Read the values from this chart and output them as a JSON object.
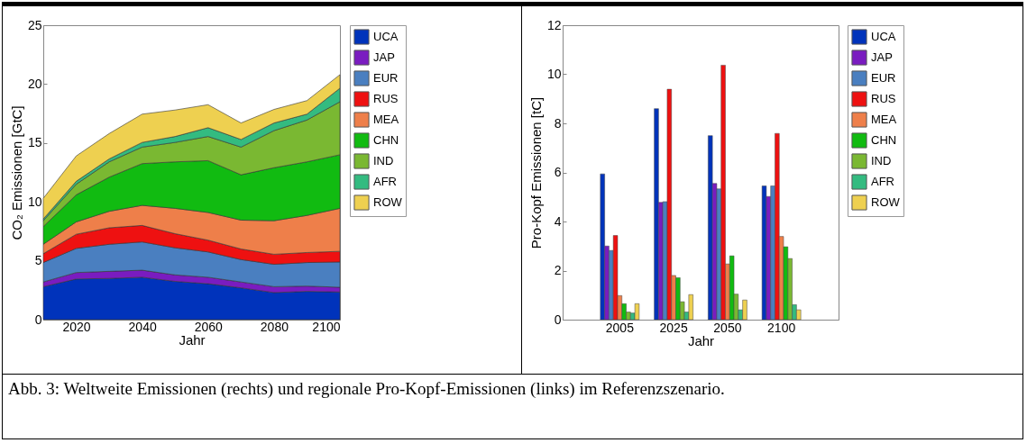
{
  "chart_data": [
    {
      "type": "area",
      "stacked": true,
      "xlabel": "Jahr",
      "ylabel": "CO₂ Emissionen [GtC]",
      "x": [
        2010,
        2020,
        2030,
        2040,
        2050,
        2060,
        2070,
        2080,
        2090,
        2100
      ],
      "xlim": [
        2010,
        2100
      ],
      "xticks": [
        2020,
        2040,
        2060,
        2080,
        2100
      ],
      "ylim": [
        0,
        25
      ],
      "yticks": [
        0,
        5,
        10,
        15,
        20,
        25
      ],
      "grid": false,
      "legend": "top right",
      "annotations": [
        "Abb. 3: Weltweite Emissionen (rechts) und regionale Pro-Kopf-Emissionen (links) im Referenzszenario."
      ],
      "series": [
        {
          "name": "UCA",
          "color": "#0033bb",
          "values": [
            2.8,
            3.45,
            3.5,
            3.6,
            3.25,
            3.05,
            2.7,
            2.3,
            2.4,
            2.35
          ]
        },
        {
          "name": "JAP",
          "color": "#7a1cc0",
          "values": [
            0.4,
            0.55,
            0.6,
            0.6,
            0.55,
            0.55,
            0.5,
            0.5,
            0.45,
            0.4
          ]
        },
        {
          "name": "EUR",
          "color": "#4a7fc0",
          "values": [
            1.65,
            2.05,
            2.3,
            2.4,
            2.3,
            2.15,
            1.9,
            1.9,
            2.0,
            2.15
          ]
        },
        {
          "name": "RUS",
          "color": "#ee1111",
          "values": [
            0.75,
            1.2,
            1.4,
            1.4,
            1.2,
            1.0,
            0.9,
            0.85,
            0.85,
            0.9
          ]
        },
        {
          "name": "MEA",
          "color": "#ee7f4a",
          "values": [
            0.8,
            1.05,
            1.4,
            1.7,
            2.15,
            2.35,
            2.45,
            2.85,
            3.15,
            3.65
          ]
        },
        {
          "name": "CHN",
          "color": "#11bb11",
          "values": [
            1.5,
            2.3,
            2.9,
            3.55,
            3.95,
            4.4,
            3.85,
            4.5,
            4.55,
            4.55
          ]
        },
        {
          "name": "IND",
          "color": "#7ab832",
          "values": [
            0.5,
            0.9,
            1.3,
            1.4,
            1.65,
            2.05,
            2.35,
            3.15,
            3.55,
            4.5
          ]
        },
        {
          "name": "AFR",
          "color": "#33bb80",
          "values": [
            0.15,
            0.25,
            0.25,
            0.4,
            0.5,
            0.75,
            0.65,
            0.65,
            0.5,
            1.15
          ]
        },
        {
          "name": "ROW",
          "color": "#eed050",
          "values": [
            1.75,
            2.15,
            2.15,
            2.4,
            2.25,
            1.95,
            1.4,
            1.15,
            1.15,
            1.15
          ]
        }
      ]
    },
    {
      "type": "bar",
      "xlabel": "Jahr",
      "ylabel": "Pro-Kopf Emissionen [tC]",
      "categories": [
        "2005",
        "2025",
        "2050",
        "2100"
      ],
      "ylim": [
        0,
        12
      ],
      "yticks": [
        0,
        2,
        4,
        6,
        8,
        10,
        12
      ],
      "grid": false,
      "legend": "top right",
      "series": [
        {
          "name": "UCA",
          "color": "#0033bb",
          "values": [
            5.94,
            8.6,
            7.5,
            5.45
          ]
        },
        {
          "name": "JAP",
          "color": "#7a1cc0",
          "values": [
            3.0,
            4.78,
            5.55,
            5.02
          ]
        },
        {
          "name": "EUR",
          "color": "#4a7fc0",
          "values": [
            2.82,
            4.81,
            5.33,
            5.45
          ]
        },
        {
          "name": "RUS",
          "color": "#ee1111",
          "values": [
            3.43,
            9.39,
            10.37,
            7.59
          ]
        },
        {
          "name": "MEA",
          "color": "#ee7f4a",
          "values": [
            0.98,
            1.8,
            2.27,
            3.39
          ]
        },
        {
          "name": "CHN",
          "color": "#11bb11",
          "values": [
            0.65,
            1.71,
            2.6,
            2.97
          ]
        },
        {
          "name": "IND",
          "color": "#7ab832",
          "values": [
            0.31,
            0.73,
            1.04,
            2.49
          ]
        },
        {
          "name": "AFR",
          "color": "#33bb80",
          "values": [
            0.27,
            0.31,
            0.4,
            0.61
          ]
        },
        {
          "name": "ROW",
          "color": "#eed050",
          "values": [
            0.65,
            1.02,
            0.8,
            0.4
          ]
        }
      ]
    }
  ]
}
